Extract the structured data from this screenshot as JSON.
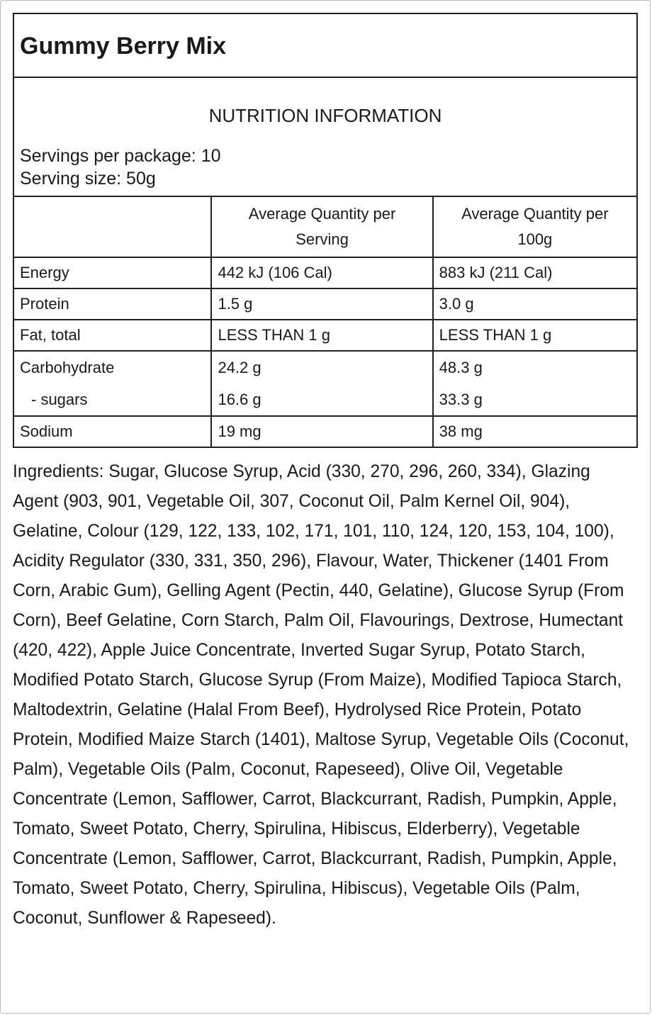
{
  "title": "Gummy Berry Mix",
  "nutrition": {
    "heading": "NUTRITION INFORMATION",
    "servings_per_package": "Servings per package: 10",
    "serving_size": "Serving size: 50g",
    "columns": [
      "Average Quantity per Serving",
      "Average Quantity per 100g"
    ],
    "rows": [
      {
        "cells": [
          "Energy",
          "442 kJ (106 Cal)",
          "883 kJ (211 Cal)"
        ]
      },
      {
        "cells": [
          "Protein",
          "1.5 g",
          "3.0 g"
        ]
      },
      {
        "cells": [
          "Fat, total",
          "LESS THAN 1 g",
          "LESS THAN 1 g"
        ]
      },
      {
        "cells": [
          "Carbohydrate",
          "24.2 g",
          "48.3 g"
        ],
        "sub": [
          "- sugars",
          "16.6 g",
          "33.3 g"
        ]
      },
      {
        "cells": [
          "Sodium",
          "19 mg",
          "38 mg"
        ]
      }
    ]
  },
  "ingredients": "Ingredients: Sugar, Glucose Syrup, Acid (330, 270, 296, 260, 334), Glazing Agent (903, 901, Vegetable Oil, 307, Coconut Oil, Palm Kernel Oil, 904), Gelatine, Colour (129, 122, 133, 102, 171, 101, 110, 124, 120, 153, 104, 100), Acidity Regulator (330, 331, 350, 296), Flavour, Water, Thickener (1401 From Corn, Arabic Gum), Gelling Agent (Pectin, 440, Gelatine), Glucose Syrup (From Corn), Beef Gelatine, Corn Starch, Palm Oil, Flavourings, Dextrose, Humectant (420, 422), Apple Juice Concentrate, Inverted Sugar Syrup, Potato Starch, Modified Potato Starch, Glucose Syrup (From Maize), Modified Tapioca Starch, Maltodextrin, Gelatine (Halal From Beef), Hydrolysed Rice Protein, Potato Protein, Modified Maize Starch (1401), Maltose Syrup, Vegetable Oils (Coconut, Palm), Vegetable Oils (Palm, Coconut, Rapeseed), Olive Oil, Vegetable Concentrate (Lemon, Safflower, Carrot, Blackcurrant, Radish, Pumpkin, Apple, Tomato, Sweet Potato, Cherry, Spirulina, Hibiscus, Elderberry), Vegetable Concentrate (Lemon, Safflower, Carrot, Blackcurrant, Radish, Pumpkin, Apple, Tomato, Sweet Potato, Cherry, Spirulina, Hibiscus), Vegetable Oils (Palm, Coconut, Sunflower & Rapeseed)."
}
